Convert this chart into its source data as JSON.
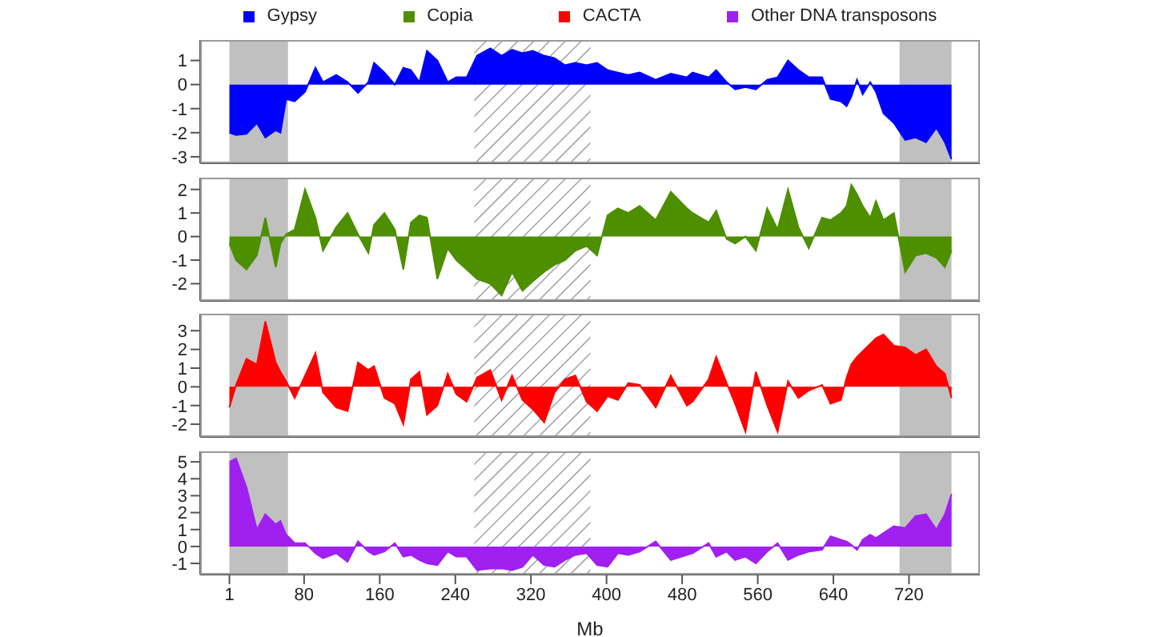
{
  "chart_data": [
    {
      "type": "area",
      "legend": "top",
      "tick_labels": "y",
      "xlim": [
        -30,
        795
      ],
      "xticks": [
        1,
        80,
        160,
        240,
        320,
        400,
        480,
        560,
        640,
        720
      ],
      "ylim": [
        -3.27,
        1.85
      ],
      "yticks": [
        -3,
        -2,
        -1,
        0,
        1
      ],
      "bands": [
        {
          "axis": "x",
          "from": 1,
          "to": 63,
          "color": "#c0c0c0"
        },
        {
          "axis": "x",
          "from": 710,
          "to": 765,
          "color": "#c0c0c0"
        },
        {
          "axis": "x",
          "from": 260,
          "to": 383
        }
      ],
      "x": [
        1,
        8,
        19,
        30,
        39,
        50,
        55,
        61,
        70,
        81,
        92,
        100,
        114,
        126,
        137,
        148,
        154,
        165,
        176,
        185,
        193,
        202,
        210,
        221,
        232,
        241,
        252,
        263,
        277,
        289,
        300,
        311,
        322,
        334,
        345,
        356,
        367,
        379,
        390,
        401,
        412,
        423,
        435,
        452,
        468,
        485,
        491,
        508,
        516,
        527,
        536,
        547,
        558,
        570,
        581,
        592,
        603,
        614,
        628,
        637,
        648,
        654,
        659,
        665,
        671,
        679,
        685,
        693,
        704,
        716,
        727,
        738,
        749,
        758,
        765
      ],
      "series": [
        {
          "name": "Gypsy",
          "color": "#0000ff",
          "values": [
            -2.0,
            -2.1,
            -2.05,
            -1.6,
            -2.2,
            -1.9,
            -2.0,
            -0.6,
            -0.7,
            -0.3,
            0.7,
            0.1,
            0.4,
            0.1,
            -0.35,
            0.1,
            0.9,
            0.5,
            0.0,
            0.7,
            0.6,
            0.1,
            1.4,
            1.0,
            0.1,
            0.3,
            0.3,
            1.2,
            1.5,
            1.2,
            1.45,
            1.3,
            1.4,
            1.2,
            1.1,
            0.8,
            0.9,
            0.8,
            0.9,
            0.6,
            0.5,
            0.4,
            0.5,
            0.2,
            0.45,
            0.3,
            0.5,
            0.3,
            0.6,
            0.1,
            -0.2,
            -0.1,
            -0.2,
            0.2,
            0.3,
            1.0,
            0.6,
            0.3,
            0.3,
            -0.6,
            -0.7,
            -0.9,
            -0.5,
            0.2,
            -0.4,
            0.1,
            -0.3,
            -1.2,
            -1.6,
            -2.3,
            -2.2,
            -2.4,
            -1.8,
            -2.4,
            -3.1
          ]
        }
      ]
    },
    {
      "type": "area",
      "legend": "top",
      "tick_labels": "y",
      "xlim": [
        -30,
        795
      ],
      "xticks": [
        1,
        80,
        160,
        240,
        320,
        400,
        480,
        560,
        640,
        720
      ],
      "ylim": [
        -2.73,
        2.5
      ],
      "yticks": [
        -2,
        -1,
        0,
        1,
        2
      ],
      "bands": [
        {
          "axis": "x",
          "from": 1,
          "to": 63,
          "color": "#c0c0c0"
        },
        {
          "axis": "x",
          "from": 710,
          "to": 765,
          "color": "#c0c0c0"
        },
        {
          "axis": "x",
          "from": 260,
          "to": 383
        }
      ],
      "x": [
        1,
        8,
        19,
        30,
        39,
        50,
        55,
        61,
        70,
        81,
        92,
        100,
        114,
        126,
        137,
        148,
        154,
        165,
        176,
        185,
        193,
        202,
        210,
        221,
        232,
        241,
        252,
        263,
        277,
        289,
        300,
        311,
        322,
        334,
        345,
        356,
        367,
        379,
        390,
        401,
        412,
        423,
        435,
        452,
        468,
        485,
        491,
        508,
        516,
        527,
        536,
        547,
        558,
        570,
        581,
        592,
        603,
        614,
        628,
        637,
        648,
        654,
        659,
        665,
        671,
        679,
        685,
        693,
        704,
        716,
        727,
        738,
        749,
        758,
        765
      ],
      "series": [
        {
          "name": "Copia",
          "color": "#4e8f00",
          "values": [
            -0.3,
            -1.0,
            -1.4,
            -0.8,
            0.8,
            -1.3,
            -0.3,
            0.1,
            0.3,
            2.0,
            0.8,
            -0.6,
            0.4,
            1.0,
            0.1,
            -0.7,
            0.5,
            1.0,
            0.3,
            -1.4,
            0.6,
            0.9,
            0.8,
            -1.8,
            -0.5,
            -1.0,
            -1.4,
            -1.8,
            -2.0,
            -2.5,
            -1.5,
            -2.3,
            -1.9,
            -1.5,
            -1.2,
            -1.0,
            -0.6,
            -0.4,
            -0.8,
            0.9,
            1.2,
            1.0,
            1.3,
            0.7,
            1.9,
            1.2,
            1.0,
            0.6,
            1.1,
            -0.1,
            -0.3,
            0.0,
            -0.6,
            1.2,
            0.3,
            2.0,
            0.4,
            -0.5,
            0.8,
            0.7,
            1.0,
            1.3,
            2.2,
            1.8,
            1.3,
            0.8,
            1.5,
            0.7,
            1.0,
            -1.5,
            -0.8,
            -0.7,
            -0.9,
            -1.3,
            -0.6
          ]
        }
      ]
    },
    {
      "type": "area",
      "legend": "top",
      "tick_labels": "y",
      "xlim": [
        -30,
        795
      ],
      "xticks": [
        1,
        80,
        160,
        240,
        320,
        400,
        480,
        560,
        640,
        720
      ],
      "ylim": [
        -2.68,
        3.91
      ],
      "yticks": [
        -2,
        -1,
        0,
        1,
        2,
        3
      ],
      "bands": [
        {
          "axis": "x",
          "from": 1,
          "to": 63,
          "color": "#c0c0c0"
        },
        {
          "axis": "x",
          "from": 710,
          "to": 765,
          "color": "#c0c0c0"
        },
        {
          "axis": "x",
          "from": 260,
          "to": 383
        }
      ],
      "x": [
        1,
        8,
        19,
        30,
        39,
        50,
        55,
        61,
        70,
        81,
        92,
        100,
        114,
        126,
        137,
        148,
        154,
        165,
        176,
        185,
        193,
        202,
        210,
        221,
        232,
        241,
        252,
        263,
        277,
        289,
        300,
        311,
        322,
        334,
        345,
        356,
        367,
        379,
        390,
        401,
        412,
        423,
        435,
        452,
        468,
        485,
        491,
        508,
        516,
        527,
        536,
        547,
        558,
        570,
        581,
        592,
        603,
        614,
        628,
        637,
        648,
        654,
        659,
        665,
        671,
        679,
        685,
        693,
        704,
        716,
        727,
        738,
        749,
        758,
        765
      ],
      "series": [
        {
          "name": "CACTA",
          "color": "#ff0000",
          "values": [
            -1.1,
            0.1,
            1.5,
            1.2,
            3.5,
            1.3,
            0.8,
            0.3,
            -0.6,
            0.6,
            1.8,
            -0.3,
            -1.1,
            -1.3,
            1.3,
            0.9,
            1.1,
            -0.6,
            -0.9,
            -2.0,
            0.4,
            0.8,
            -1.5,
            -1.0,
            0.7,
            -0.4,
            -0.8,
            0.5,
            0.9,
            -0.7,
            0.6,
            -0.7,
            -1.2,
            -1.9,
            -0.3,
            0.4,
            0.6,
            -0.8,
            -1.3,
            -0.5,
            -0.7,
            0.2,
            0.1,
            -1.1,
            0.6,
            -1.0,
            -0.8,
            0.4,
            1.6,
            0.2,
            -0.9,
            -2.4,
            0.8,
            -1.0,
            -2.4,
            0.3,
            -0.6,
            -0.2,
            0.1,
            -0.9,
            -0.7,
            0.5,
            1.2,
            1.6,
            1.9,
            2.3,
            2.6,
            2.8,
            2.2,
            2.1,
            1.7,
            2.0,
            1.1,
            0.7,
            -0.6
          ]
        }
      ]
    },
    {
      "type": "area",
      "legend": "top",
      "xlabel": "Mb",
      "xlim": [
        -30,
        795
      ],
      "xticks": [
        1,
        80,
        160,
        240,
        320,
        400,
        480,
        560,
        640,
        720
      ],
      "ylim": [
        -1.66,
        5.62
      ],
      "yticks": [
        -1,
        0,
        1,
        2,
        3,
        4,
        5
      ],
      "bands": [
        {
          "axis": "x",
          "from": 1,
          "to": 63,
          "color": "#c0c0c0"
        },
        {
          "axis": "x",
          "from": 710,
          "to": 765,
          "color": "#c0c0c0"
        },
        {
          "axis": "x",
          "from": 260,
          "to": 383
        }
      ],
      "x": [
        1,
        8,
        19,
        30,
        39,
        50,
        55,
        61,
        70,
        81,
        92,
        100,
        114,
        126,
        137,
        148,
        154,
        165,
        176,
        185,
        193,
        202,
        210,
        221,
        232,
        241,
        252,
        263,
        277,
        289,
        300,
        311,
        322,
        334,
        345,
        356,
        367,
        379,
        390,
        401,
        412,
        423,
        435,
        452,
        468,
        485,
        491,
        508,
        516,
        527,
        536,
        547,
        558,
        570,
        581,
        592,
        603,
        614,
        628,
        637,
        648,
        654,
        659,
        665,
        671,
        679,
        685,
        693,
        704,
        716,
        727,
        738,
        749,
        758,
        765
      ],
      "series": [
        {
          "name": "Other DNA transposons",
          "color": "#a020f0",
          "values": [
            5.0,
            5.2,
            3.5,
            1.0,
            1.9,
            1.3,
            1.5,
            0.7,
            0.2,
            0.2,
            -0.4,
            -0.7,
            -0.4,
            -0.9,
            0.3,
            -0.3,
            -0.5,
            -0.3,
            0.2,
            -0.6,
            -0.5,
            -0.8,
            -1.0,
            -1.1,
            -0.3,
            -0.6,
            -0.6,
            -1.4,
            -1.3,
            -1.3,
            -1.4,
            -1.2,
            -0.5,
            -1.1,
            -1.2,
            -0.8,
            -0.5,
            -0.4,
            -1.1,
            -1.2,
            -0.4,
            -0.5,
            -0.3,
            0.3,
            -0.8,
            -0.5,
            -0.4,
            0.2,
            -0.6,
            -0.3,
            -0.8,
            -0.6,
            -1.0,
            -0.3,
            0.2,
            -0.8,
            -0.5,
            -0.3,
            -0.2,
            0.6,
            0.4,
            0.3,
            0.1,
            -0.2,
            0.4,
            0.7,
            0.5,
            0.8,
            1.2,
            1.1,
            1.8,
            1.9,
            1.0,
            1.9,
            3.1
          ]
        }
      ]
    }
  ]
}
